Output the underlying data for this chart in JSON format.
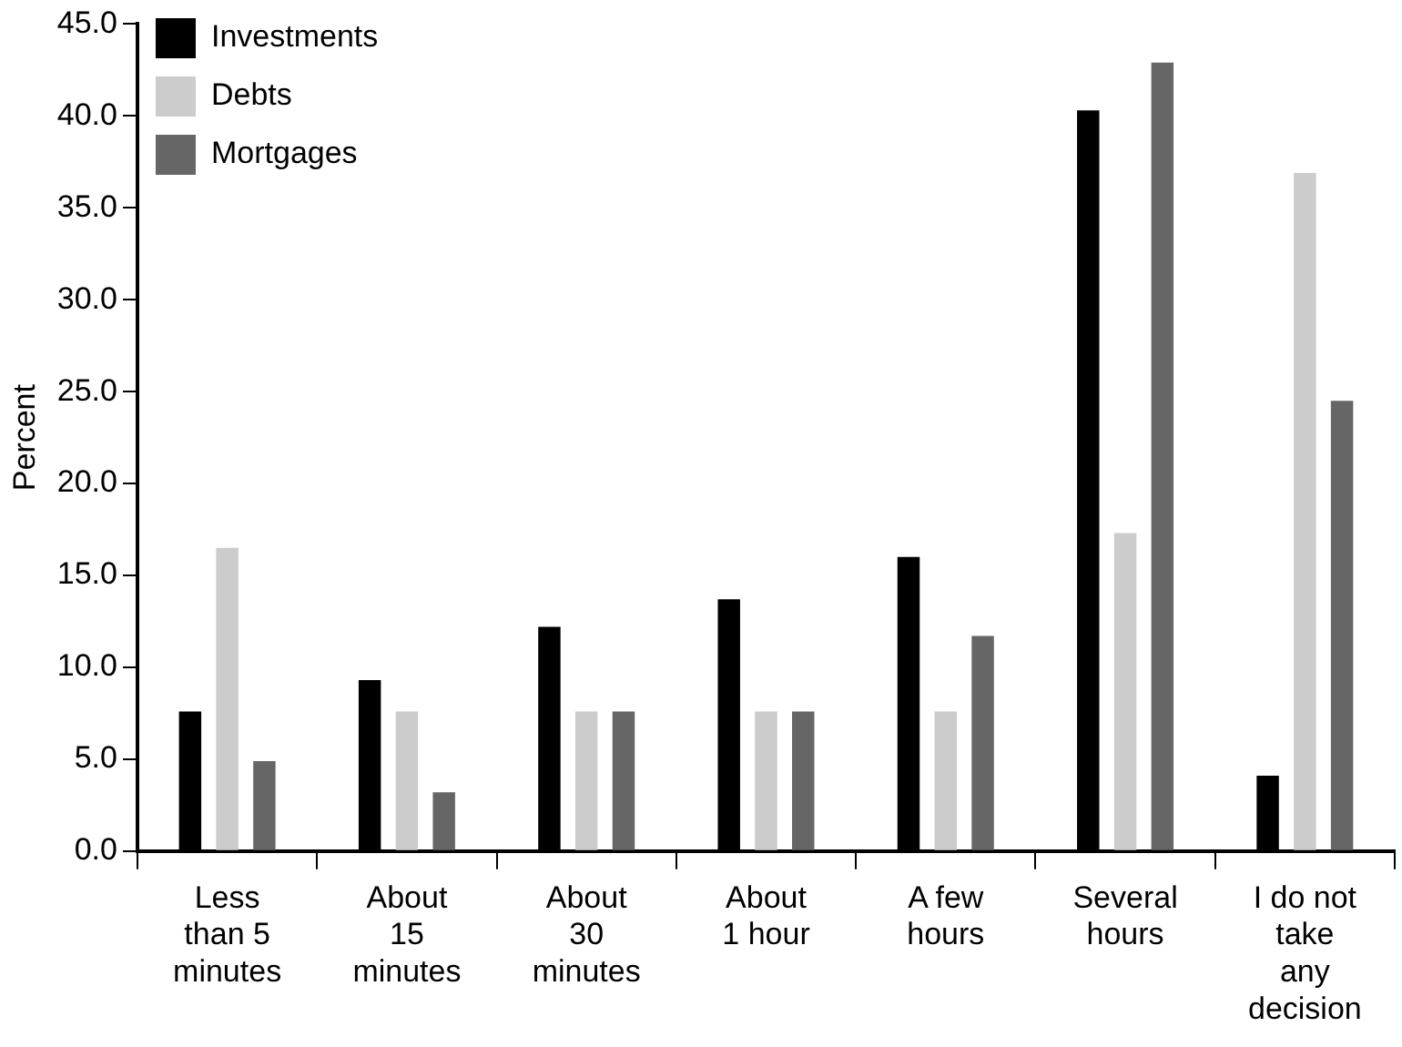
{
  "chart_data": {
    "type": "bar",
    "ylabel": "Percent",
    "categories": [
      "Less\nthan 5\nminutes",
      "About\n15\nminutes",
      "About\n30\nminutes",
      "About\n1 hour",
      "A few\nhours",
      "Several\nhours",
      "I do not\ntake\nany\ndecision"
    ],
    "series": [
      {
        "name": "Investments",
        "color": "#000000",
        "values": [
          7.6,
          9.3,
          12.2,
          13.7,
          16.0,
          40.3,
          4.1
        ]
      },
      {
        "name": "Debts",
        "color": "#cccccc",
        "values": [
          16.5,
          7.6,
          7.6,
          7.6,
          7.6,
          17.3,
          36.9
        ]
      },
      {
        "name": "Mortgages",
        "color": "#666666",
        "values": [
          4.9,
          3.2,
          7.6,
          7.6,
          11.7,
          42.9,
          24.5
        ]
      }
    ],
    "ylim": [
      0,
      45
    ],
    "yticks": [
      {
        "value": 0,
        "label": "0.0"
      },
      {
        "value": 5,
        "label": "5.0"
      },
      {
        "value": 10,
        "label": "10.0"
      },
      {
        "value": 15,
        "label": "15.0"
      },
      {
        "value": 20,
        "label": "20.0"
      },
      {
        "value": 25,
        "label": "25.0"
      },
      {
        "value": 30,
        "label": "30.0"
      },
      {
        "value": 35,
        "label": "35.0"
      },
      {
        "value": 40,
        "label": "40.0"
      },
      {
        "value": 45,
        "label": "45.0"
      }
    ],
    "grid": false,
    "legend": "top left"
  }
}
